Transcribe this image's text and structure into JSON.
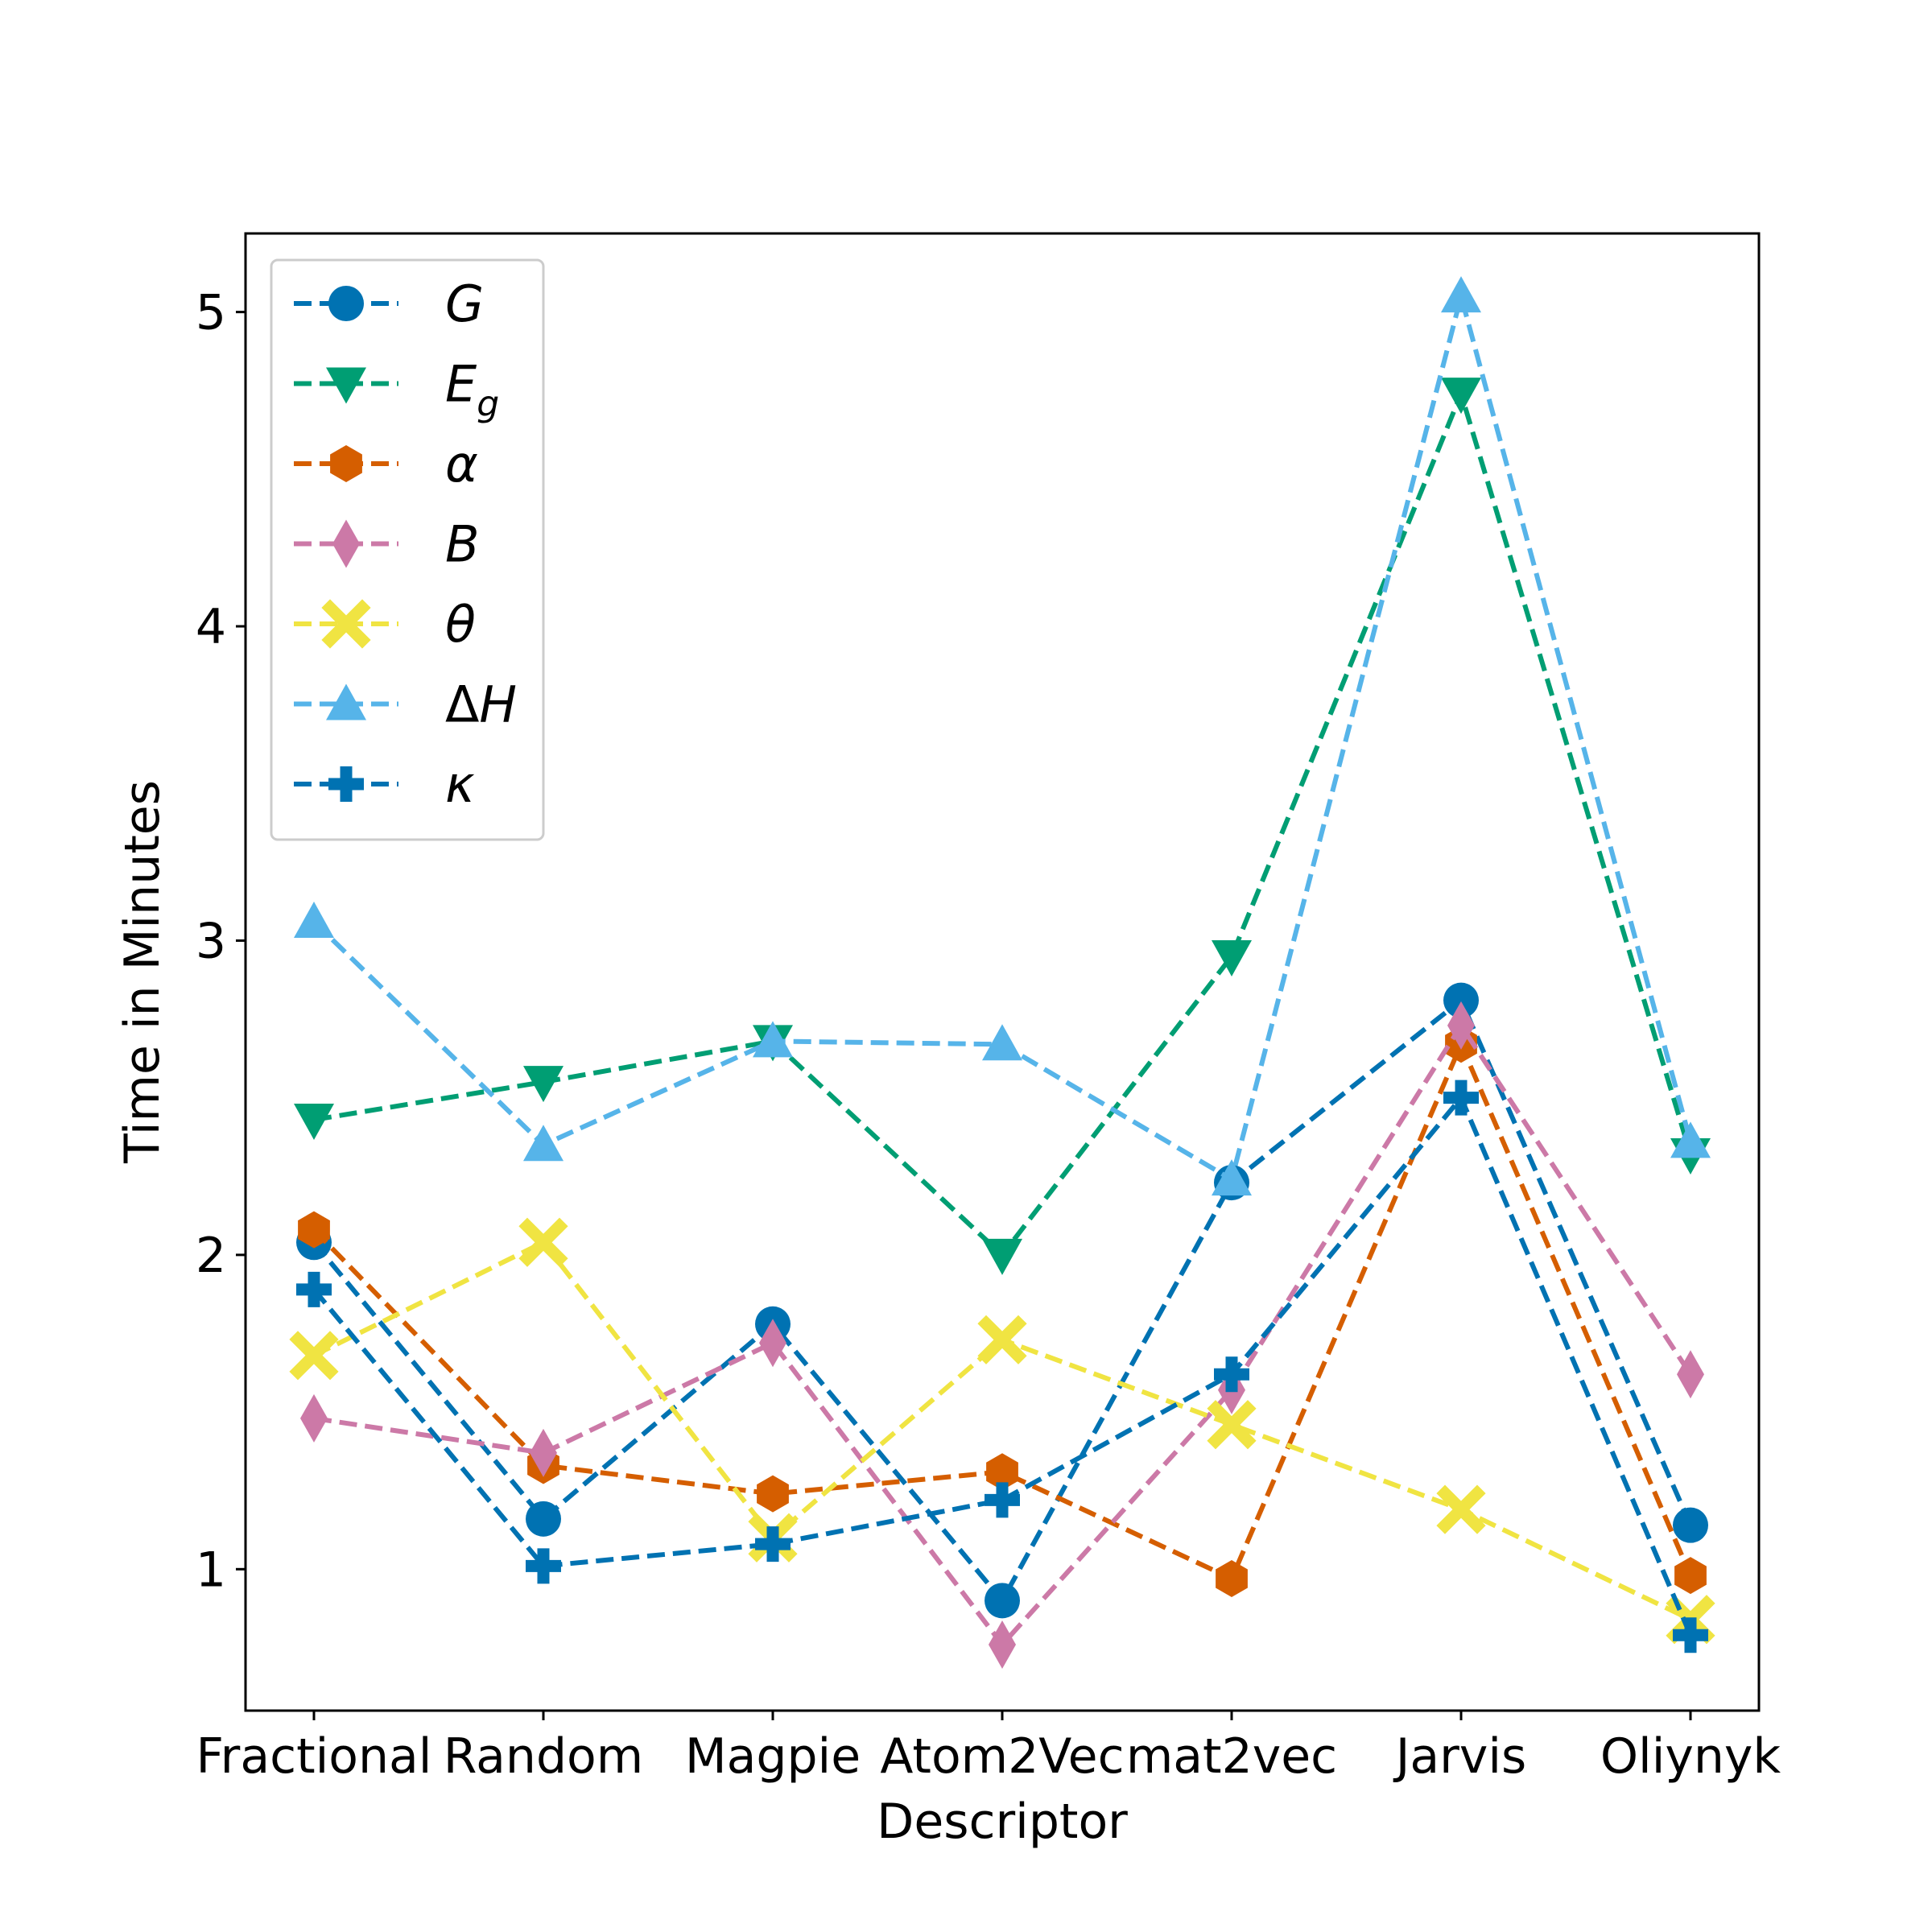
{
  "chart_data": {
    "type": "line",
    "title": "",
    "xlabel": "Descriptor",
    "ylabel": "Time in Minutes",
    "categories": [
      "Fractional",
      "Random",
      "Magpie",
      "Atom2Vec",
      "mat2vec",
      "Jarvis",
      "Oliynyk"
    ],
    "ylim": [
      0.55,
      5.25
    ],
    "yticks": [
      1,
      2,
      3,
      4,
      5
    ],
    "grid": false,
    "legend_position": "top-left",
    "line_style": "dashed",
    "series": [
      {
        "name": "G",
        "sub": "",
        "prefix": "",
        "marker": "circle",
        "color": "#0072b2",
        "values": [
          2.04,
          1.16,
          1.78,
          0.9,
          2.23,
          2.81,
          1.14
        ]
      },
      {
        "name": "E",
        "sub": "g",
        "prefix": "",
        "marker": "triangle-down",
        "color": "#009e73",
        "values": [
          2.43,
          2.55,
          2.68,
          2.0,
          2.95,
          4.74,
          2.32
        ]
      },
      {
        "name": "α",
        "sub": "",
        "prefix": "",
        "marker": "hexagon",
        "color": "#d55e00",
        "values": [
          2.08,
          1.33,
          1.24,
          1.31,
          0.97,
          2.67,
          0.98
        ]
      },
      {
        "name": "B",
        "sub": "",
        "prefix": "",
        "marker": "diamond",
        "color": "#cc79a7",
        "values": [
          1.48,
          1.37,
          1.72,
          0.76,
          1.57,
          2.73,
          1.62
        ]
      },
      {
        "name": "θ",
        "sub": "",
        "prefix": "",
        "marker": "x-filled",
        "color": "#f0e442",
        "values": [
          1.68,
          2.04,
          1.1,
          1.73,
          1.46,
          1.19,
          0.84
        ]
      },
      {
        "name": "H",
        "sub": "",
        "prefix": "Δ",
        "marker": "triangle-up",
        "color": "#56b4e9",
        "values": [
          3.06,
          2.35,
          2.68,
          2.67,
          2.24,
          5.05,
          2.36
        ]
      },
      {
        "name": "κ",
        "sub": "",
        "prefix": "",
        "marker": "plus-filled",
        "color": "#0072b2",
        "values": [
          1.89,
          1.01,
          1.08,
          1.22,
          1.62,
          2.5,
          0.79
        ]
      }
    ]
  }
}
